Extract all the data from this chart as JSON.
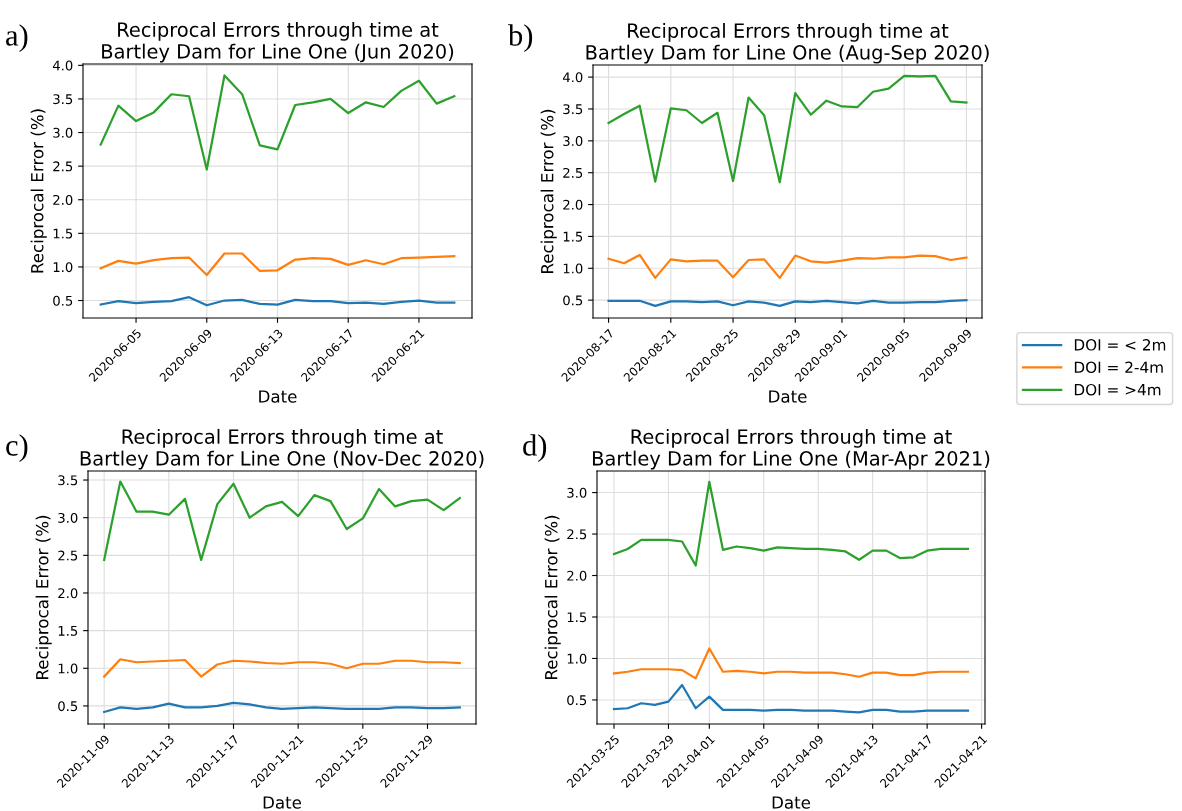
{
  "chart_data": [
    {
      "type": "line",
      "title": "Reciprocal Errors through time at\nBartley Dam for Line One (Jun 2020)",
      "xlabel": "Date",
      "ylabel": "Reciprocal Error (%)",
      "annotations": [
        "a)"
      ],
      "x": [
        "2020-06-03",
        "2020-06-04",
        "2020-06-05",
        "2020-06-06",
        "2020-06-07",
        "2020-06-08",
        "2020-06-09",
        "2020-06-10",
        "2020-06-11",
        "2020-06-12",
        "2020-06-13",
        "2020-06-14",
        "2020-06-15",
        "2020-06-16",
        "2020-06-17",
        "2020-06-18",
        "2020-06-19",
        "2020-06-20",
        "2020-06-21",
        "2020-06-22",
        "2020-06-23"
      ],
      "series": [
        {
          "color": "#1f77b4",
          "values": [
            0.44,
            0.49,
            0.46,
            0.48,
            0.49,
            0.55,
            0.43,
            0.5,
            0.51,
            0.45,
            0.44,
            0.51,
            0.49,
            0.49,
            0.46,
            0.47,
            0.45,
            0.48,
            0.5,
            0.47,
            0.47
          ]
        },
        {
          "color": "#ff7f0e",
          "values": [
            0.98,
            1.09,
            1.05,
            1.1,
            1.13,
            1.14,
            0.88,
            1.2,
            1.2,
            0.94,
            0.95,
            1.11,
            1.13,
            1.12,
            1.03,
            1.1,
            1.04,
            1.13,
            1.14,
            1.15,
            1.16
          ]
        },
        {
          "color": "#2ca02c",
          "values": [
            2.82,
            3.4,
            3.17,
            3.3,
            3.57,
            3.54,
            2.45,
            3.85,
            3.57,
            2.81,
            2.75,
            3.41,
            3.45,
            3.5,
            3.29,
            3.45,
            3.38,
            3.62,
            3.77,
            3.43,
            3.54
          ]
        }
      ],
      "xlim": [
        "2020-06-02",
        "2020-06-24"
      ],
      "xticks": [
        "2020-06-05",
        "2020-06-09",
        "2020-06-13",
        "2020-06-17",
        "2020-06-21"
      ],
      "ylim": [
        0.24,
        4.02
      ],
      "yticks": [
        0.5,
        {
          "value": 1,
          "label": "1.0"
        },
        1.5,
        {
          "value": 2,
          "label": "2.0"
        },
        2.5,
        {
          "value": 3,
          "label": "3.0"
        },
        3.5,
        {
          "value": 4,
          "label": "4.0"
        }
      ],
      "grid": true
    },
    {
      "type": "line",
      "title": "Reciprocal Errors through time at\nBartley Dam for Line One (Aug-Sep 2020)",
      "xlabel": "Date",
      "ylabel": "Reciprocal Error (%)",
      "annotations": [
        "b)"
      ],
      "x": [
        "2020-08-17",
        "2020-08-18",
        "2020-08-19",
        "2020-08-20",
        "2020-08-21",
        "2020-08-22",
        "2020-08-23",
        "2020-08-24",
        "2020-08-25",
        "2020-08-26",
        "2020-08-27",
        "2020-08-28",
        "2020-08-29",
        "2020-08-30",
        "2020-08-31",
        "2020-09-01",
        "2020-09-02",
        "2020-09-03",
        "2020-09-04",
        "2020-09-05",
        "2020-09-06",
        "2020-09-07",
        "2020-09-08",
        "2020-09-09"
      ],
      "series": [
        {
          "name": "DOI = < 2m",
          "color": "#1f77b4",
          "values": [
            0.49,
            0.49,
            0.49,
            0.41,
            0.48,
            0.48,
            0.47,
            0.48,
            0.42,
            0.48,
            0.46,
            0.41,
            0.48,
            0.47,
            0.49,
            0.47,
            0.45,
            0.49,
            0.46,
            0.46,
            0.47,
            0.47,
            0.49,
            0.5
          ]
        },
        {
          "name": "DOI = 2-4m",
          "color": "#ff7f0e",
          "values": [
            1.15,
            1.08,
            1.21,
            0.85,
            1.14,
            1.11,
            1.12,
            1.12,
            0.86,
            1.13,
            1.14,
            0.85,
            1.2,
            1.11,
            1.09,
            1.12,
            1.16,
            1.15,
            1.17,
            1.17,
            1.2,
            1.19,
            1.13,
            1.17
          ]
        },
        {
          "name": "DOI = >4m",
          "color": "#2ca02c",
          "values": [
            3.28,
            3.42,
            3.55,
            2.36,
            3.51,
            3.48,
            3.28,
            3.44,
            2.37,
            3.68,
            3.4,
            2.35,
            3.75,
            3.41,
            3.63,
            3.54,
            3.53,
            3.77,
            3.82,
            4.02,
            4.01,
            4.02,
            3.62,
            3.6
          ]
        }
      ],
      "xlim": [
        "2020-08-16",
        "2020-09-10"
      ],
      "xticks": [
        "2020-08-17",
        "2020-08-21",
        "2020-08-25",
        "2020-08-29",
        "2020-09-01",
        "2020-09-05",
        "2020-09-09"
      ],
      "ylim": [
        0.22,
        4.19
      ],
      "yticks": [
        0.5,
        {
          "value": 1,
          "label": "1.0"
        },
        1.5,
        {
          "value": 2,
          "label": "2.0"
        },
        2.5,
        {
          "value": 3,
          "label": "3.0"
        },
        3.5,
        {
          "value": 4,
          "label": "4.0"
        }
      ],
      "grid": true,
      "legend": "right"
    },
    {
      "type": "line",
      "title": "Reciprocal Errors through time at\nBartley Dam for Line One (Nov-Dec 2020)",
      "xlabel": "Date",
      "ylabel": "Reciprocal Error (%)",
      "annotations": [
        "c)"
      ],
      "x": [
        "2020-11-09",
        "2020-11-10",
        "2020-11-11",
        "2020-11-12",
        "2020-11-13",
        "2020-11-14",
        "2020-11-15",
        "2020-11-16",
        "2020-11-17",
        "2020-11-18",
        "2020-11-19",
        "2020-11-20",
        "2020-11-21",
        "2020-11-22",
        "2020-11-23",
        "2020-11-24",
        "2020-11-25",
        "2020-11-26",
        "2020-11-27",
        "2020-11-28",
        "2020-11-29",
        "2020-11-30",
        "2020-12-01"
      ],
      "series": [
        {
          "color": "#1f77b4",
          "values": [
            0.42,
            0.48,
            0.46,
            0.48,
            0.53,
            0.48,
            0.48,
            0.5,
            0.54,
            0.52,
            0.48,
            0.46,
            0.47,
            0.48,
            0.47,
            0.46,
            0.46,
            0.46,
            0.48,
            0.48,
            0.47,
            0.47,
            0.48
          ]
        },
        {
          "color": "#ff7f0e",
          "values": [
            0.89,
            1.12,
            1.08,
            1.09,
            1.1,
            1.11,
            0.89,
            1.05,
            1.1,
            1.09,
            1.07,
            1.06,
            1.08,
            1.08,
            1.06,
            1.0,
            1.06,
            1.06,
            1.1,
            1.1,
            1.08,
            1.08,
            1.07
          ]
        },
        {
          "color": "#2ca02c",
          "values": [
            2.44,
            3.48,
            3.08,
            3.08,
            3.04,
            3.25,
            2.44,
            3.18,
            3.45,
            3.0,
            3.15,
            3.21,
            3.02,
            3.3,
            3.22,
            2.85,
            2.99,
            3.38,
            3.15,
            3.22,
            3.24,
            3.1,
            3.26
          ]
        }
      ],
      "xlim": [
        "2020-11-08",
        "2020-12-02"
      ],
      "xticks": [
        "2020-11-09",
        "2020-11-13",
        "2020-11-17",
        "2020-11-21",
        "2020-11-25",
        "2020-11-29"
      ],
      "ylim": [
        0.26,
        3.62
      ],
      "yticks": [
        0.5,
        {
          "value": 1,
          "label": "1.0"
        },
        1.5,
        {
          "value": 2,
          "label": "2.0"
        },
        2.5,
        {
          "value": 3,
          "label": "3.0"
        },
        3.5
      ],
      "grid": true
    },
    {
      "type": "line",
      "title": "Reciprocal Errors through time at\nBartley Dam for Line One (Mar-Apr 2021)",
      "xlabel": "Date",
      "ylabel": "Reciprocal Error (%)",
      "annotations": [
        "d)"
      ],
      "x": [
        "2021-03-25",
        "2021-03-26",
        "2021-03-27",
        "2021-03-28",
        "2021-03-29",
        "2021-03-30",
        "2021-03-31",
        "2021-04-01",
        "2021-04-02",
        "2021-04-03",
        "2021-04-04",
        "2021-04-05",
        "2021-04-06",
        "2021-04-07",
        "2021-04-08",
        "2021-04-09",
        "2021-04-10",
        "2021-04-11",
        "2021-04-12",
        "2021-04-13",
        "2021-04-14",
        "2021-04-15",
        "2021-04-16",
        "2021-04-17",
        "2021-04-18",
        "2021-04-19",
        "2021-04-20"
      ],
      "series": [
        {
          "color": "#1f77b4",
          "values": [
            0.39,
            0.4,
            0.46,
            0.44,
            0.48,
            0.68,
            0.4,
            0.54,
            0.38,
            0.38,
            0.38,
            0.37,
            0.38,
            0.38,
            0.37,
            0.37,
            0.37,
            0.36,
            0.35,
            0.38,
            0.38,
            0.36,
            0.36,
            0.37,
            0.37,
            0.37,
            0.37
          ]
        },
        {
          "color": "#ff7f0e",
          "values": [
            0.82,
            0.84,
            0.87,
            0.87,
            0.87,
            0.86,
            0.76,
            1.12,
            0.84,
            0.85,
            0.84,
            0.82,
            0.84,
            0.84,
            0.83,
            0.83,
            0.83,
            0.81,
            0.78,
            0.83,
            0.83,
            0.8,
            0.8,
            0.83,
            0.84,
            0.84,
            0.84
          ]
        },
        {
          "color": "#2ca02c",
          "values": [
            2.26,
            2.32,
            2.43,
            2.43,
            2.43,
            2.41,
            2.12,
            3.13,
            2.31,
            2.35,
            2.33,
            2.3,
            2.34,
            2.33,
            2.32,
            2.32,
            2.31,
            2.29,
            2.19,
            2.3,
            2.3,
            2.21,
            2.22,
            2.3,
            2.32,
            2.32,
            2.32
          ]
        }
      ],
      "xlim": [
        "2021-03-23T18:00",
        "2021-04-21T06:00"
      ],
      "xticks": [
        "2021-03-25",
        "2021-03-29",
        "2021-04-01",
        "2021-04-05",
        "2021-04-09",
        "2021-04-13",
        "2021-04-17",
        "2021-04-21"
      ],
      "ylim": [
        0.21,
        3.26
      ],
      "yticks": [
        0.5,
        {
          "value": 1,
          "label": "1.0"
        },
        1.5,
        {
          "value": 2,
          "label": "2.0"
        },
        2.5,
        {
          "value": 3,
          "label": "3.0"
        }
      ],
      "grid": true
    }
  ]
}
